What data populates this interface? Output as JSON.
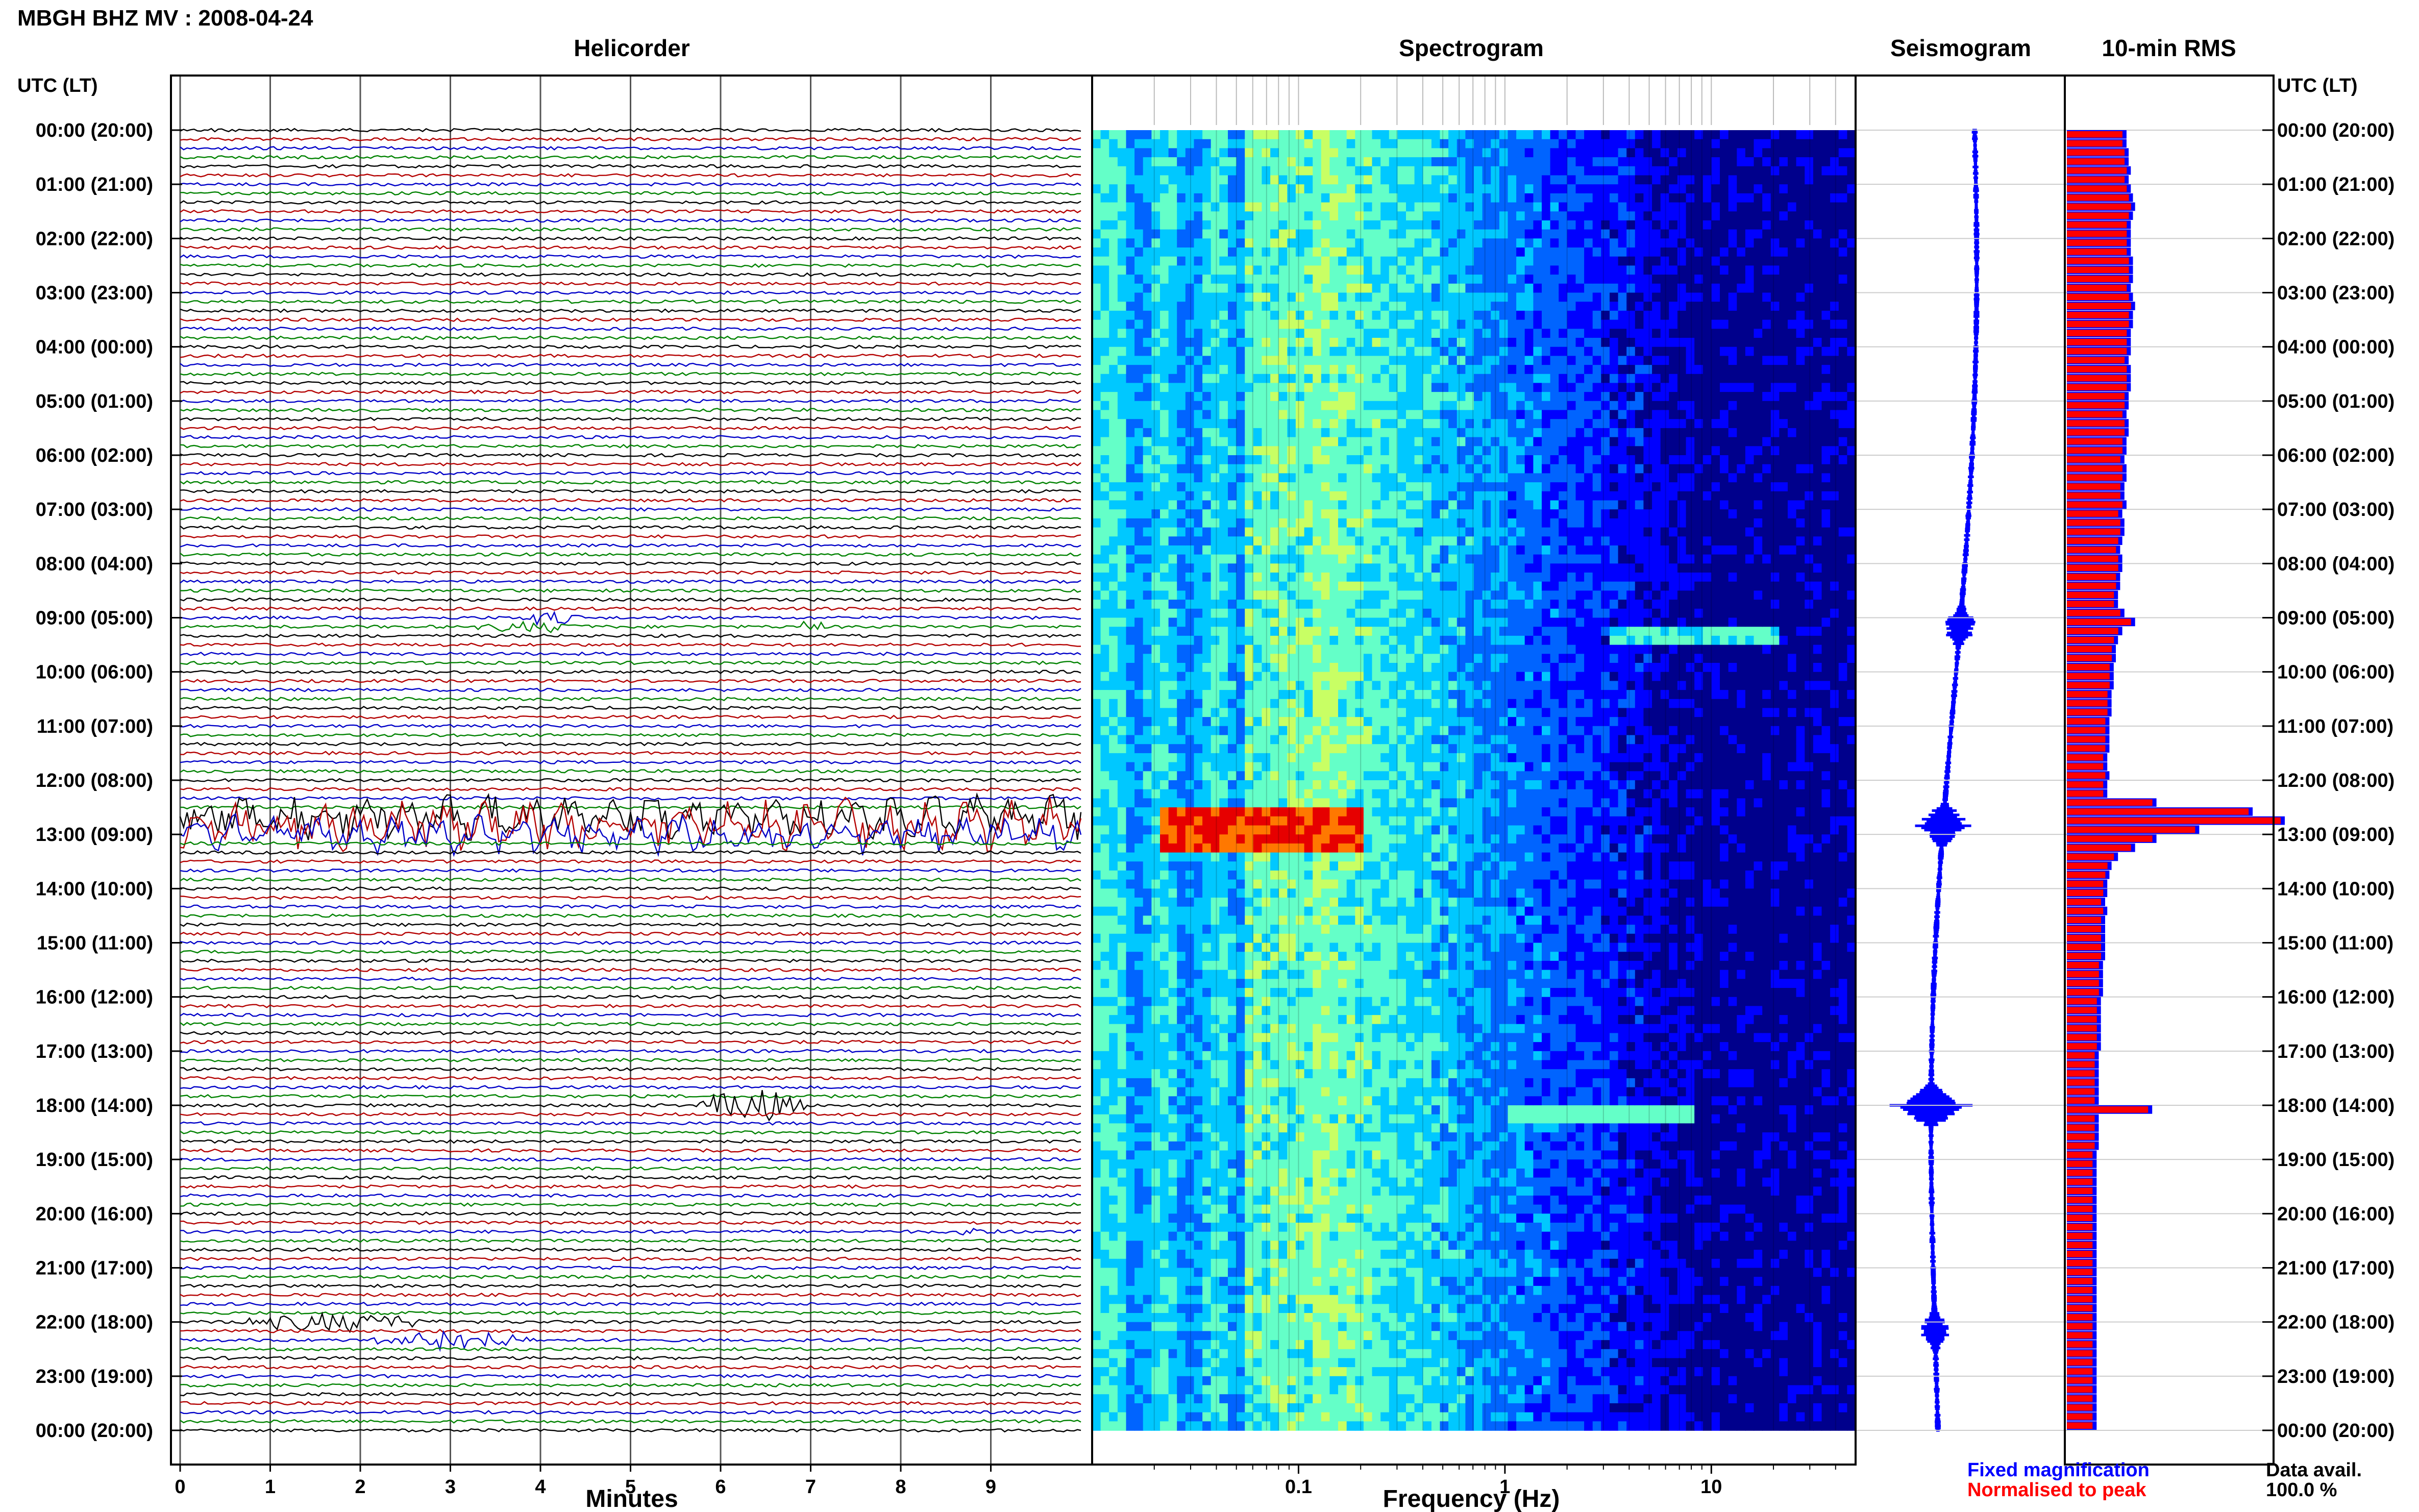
{
  "page": {
    "title": "MBGH BHZ MV : 2008-04-24"
  },
  "chart_data": [
    {
      "type": "line",
      "panel": "helicorder",
      "title": "Helicorder",
      "xlabel": "Minutes",
      "ylabel": "UTC (LT)",
      "xlim": [
        0,
        10
      ],
      "x_ticks": [
        "0",
        "1",
        "2",
        "3",
        "4",
        "5",
        "6",
        "7",
        "8",
        "9"
      ],
      "y_ticks": [
        "00:00 (20:00)",
        "01:00 (21:00)",
        "02:00 (22:00)",
        "03:00 (23:00)",
        "04:00 (00:00)",
        "05:00 (01:00)",
        "06:00 (02:00)",
        "07:00 (03:00)",
        "08:00 (04:00)",
        "09:00 (05:00)",
        "10:00 (06:00)",
        "11:00 (07:00)",
        "12:00 (08:00)",
        "13:00 (09:00)",
        "14:00 (10:00)",
        "15:00 (11:00)",
        "16:00 (12:00)",
        "17:00 (13:00)",
        "18:00 (14:00)",
        "19:00 (15:00)",
        "20:00 (16:00)",
        "21:00 (17:00)",
        "22:00 (18:00)",
        "23:00 (19:00)",
        "00:00 (20:00)"
      ],
      "trace_rows": 144,
      "trace_colors": [
        "#000000",
        "#b40000",
        "#0000c8",
        "#008200"
      ],
      "events": [
        {
          "row": 54,
          "start_min": 3.7,
          "end_min": 4.5,
          "amp": 0.35
        },
        {
          "row": 55,
          "start_min": 3.2,
          "end_min": 4.6,
          "amp": 0.3
        },
        {
          "row": 55,
          "start_min": 6.8,
          "end_min": 7.2,
          "amp": 0.25
        },
        {
          "row": 76,
          "start_min": 0.0,
          "end_min": 10.0,
          "amp": 0.7
        },
        {
          "row": 77,
          "start_min": 0.0,
          "end_min": 10.0,
          "amp": 0.8
        },
        {
          "row": 78,
          "start_min": 0.0,
          "end_min": 10.0,
          "amp": 0.6
        },
        {
          "row": 108,
          "start_min": 5.7,
          "end_min": 7.0,
          "amp": 0.9
        },
        {
          "row": 122,
          "start_min": 8.6,
          "end_min": 9.2,
          "amp": 0.25
        },
        {
          "row": 132,
          "start_min": 0.5,
          "end_min": 3.0,
          "amp": 0.5
        },
        {
          "row": 134,
          "start_min": 2.0,
          "end_min": 4.0,
          "amp": 0.55
        }
      ]
    },
    {
      "type": "heatmap",
      "panel": "spectrogram",
      "title": "Spectrogram",
      "xlabel": "Frequency (Hz)",
      "x_scale": "log",
      "xlim": [
        0.01,
        50
      ],
      "x_ticks": [
        "0.1",
        "1",
        "10"
      ],
      "colormap": [
        "#00008c",
        "#0000ff",
        "#0064ff",
        "#00c8ff",
        "#64ffc8",
        "#c8ff64",
        "#ffe600",
        "#ff7800",
        "#e60000"
      ],
      "hot_rows": [
        {
          "row_start": 75,
          "row_end": 79,
          "f_start": 0.02,
          "f_end": 0.2,
          "level": 0.95
        },
        {
          "row_start": 108,
          "row_end": 109,
          "f_start": 1,
          "f_end": 8,
          "level": 0.55
        },
        {
          "row_start": 55,
          "row_end": 56,
          "f_start": 3,
          "f_end": 20,
          "level": 0.5
        }
      ]
    },
    {
      "type": "line",
      "panel": "seismogram",
      "title": "Seismogram",
      "color": "#0000ff",
      "bursts": [
        {
          "row": 55,
          "amp": 0.35
        },
        {
          "row": 77,
          "amp": 0.6
        },
        {
          "row": 108,
          "amp": 0.9
        },
        {
          "row": 133,
          "amp": 0.3
        }
      ]
    },
    {
      "type": "bar",
      "panel": "rms",
      "title": "10-min RMS",
      "ylabel": "UTC (LT)",
      "y_ticks": [
        "00:00 (20:00)",
        "01:00 (21:00)",
        "02:00 (22:00)",
        "03:00 (23:00)",
        "04:00 (00:00)",
        "05:00 (01:00)",
        "06:00 (02:00)",
        "07:00 (03:00)",
        "08:00 (04:00)",
        "09:00 (05:00)",
        "10:00 (06:00)",
        "11:00 (07:00)",
        "12:00 (08:00)",
        "13:00 (09:00)",
        "14:00 (10:00)",
        "15:00 (11:00)",
        "16:00 (12:00)",
        "17:00 (13:00)",
        "18:00 (14:00)",
        "19:00 (15:00)",
        "20:00 (16:00)",
        "21:00 (17:00)",
        "22:00 (18:00)",
        "23:00 (19:00)",
        "00:00 (20:00)"
      ],
      "values": [
        0.26,
        0.26,
        0.27,
        0.27,
        0.28,
        0.27,
        0.28,
        0.29,
        0.3,
        0.29,
        0.28,
        0.28,
        0.28,
        0.28,
        0.29,
        0.29,
        0.29,
        0.28,
        0.29,
        0.3,
        0.29,
        0.29,
        0.28,
        0.28,
        0.28,
        0.27,
        0.28,
        0.28,
        0.28,
        0.27,
        0.27,
        0.26,
        0.27,
        0.27,
        0.26,
        0.26,
        0.25,
        0.26,
        0.26,
        0.25,
        0.25,
        0.26,
        0.24,
        0.25,
        0.25,
        0.24,
        0.23,
        0.24,
        0.24,
        0.23,
        0.23,
        0.22,
        0.22,
        0.25,
        0.3,
        0.24,
        0.22,
        0.21,
        0.21,
        0.2,
        0.2,
        0.2,
        0.19,
        0.19,
        0.19,
        0.18,
        0.18,
        0.18,
        0.18,
        0.17,
        0.17,
        0.18,
        0.17,
        0.17,
        0.4,
        0.85,
        1.0,
        0.6,
        0.4,
        0.3,
        0.22,
        0.19,
        0.18,
        0.17,
        0.17,
        0.16,
        0.17,
        0.16,
        0.16,
        0.16,
        0.16,
        0.16,
        0.15,
        0.15,
        0.15,
        0.15,
        0.14,
        0.14,
        0.14,
        0.14,
        0.14,
        0.14,
        0.13,
        0.13,
        0.13,
        0.13,
        0.13,
        0.13,
        0.38,
        0.13,
        0.13,
        0.13,
        0.13,
        0.12,
        0.12,
        0.12,
        0.12,
        0.12,
        0.12,
        0.12,
        0.12,
        0.12,
        0.12,
        0.12,
        0.12,
        0.12,
        0.12,
        0.12,
        0.12,
        0.12,
        0.12,
        0.12,
        0.12,
        0.12,
        0.12,
        0.12,
        0.12,
        0.12,
        0.12,
        0.12,
        0.12,
        0.12,
        0.12,
        0.12
      ],
      "fixed_color": "#0000ff",
      "normalised_color": "#ff0000"
    }
  ],
  "legend": {
    "fixed": "Fixed magnification",
    "normalised": "Normalised to peak",
    "data_avail_label": "Data avail.",
    "data_avail_value": "100.0 %"
  }
}
